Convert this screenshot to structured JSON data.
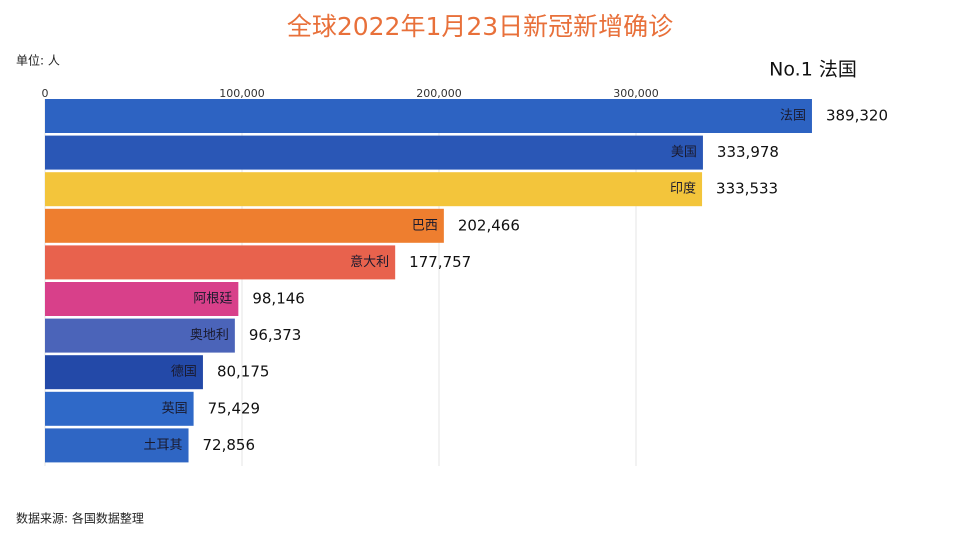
{
  "chart_data": {
    "type": "bar",
    "orientation": "horizontal",
    "title": "全球2022年1月23日新冠新增确诊",
    "unit_label": "单位: 人",
    "leader_label": "No.1 法国",
    "source": "数据来源: 各国数据整理",
    "categories": [
      "法国",
      "美国",
      "印度",
      "巴西",
      "意大利",
      "阿根廷",
      "奥地利",
      "德国",
      "英国",
      "土耳其"
    ],
    "values": [
      389320,
      333978,
      333533,
      202466,
      177757,
      98146,
      96373,
      80175,
      75429,
      72856
    ],
    "value_labels": [
      "389,320",
      "333,978",
      "333,533",
      "202,466",
      "177,757",
      "98,146",
      "96,373",
      "80,175",
      "75,429",
      "72,856"
    ],
    "colors": [
      "#2d63c2",
      "#2a57b6",
      "#f3c53b",
      "#ee7e2f",
      "#e8624d",
      "#d8408a",
      "#4b64b9",
      "#2349a8",
      "#2f69c8",
      "#2f66c4"
    ],
    "xlim": [
      0,
      400000
    ],
    "xticks": [
      0,
      {
        "value": 100000,
        "label": "100,000"
      },
      {
        "value": 200000,
        "label": "200,000"
      },
      {
        "value": 300000,
        "label": "300,000"
      }
    ],
    "grid": true
  }
}
